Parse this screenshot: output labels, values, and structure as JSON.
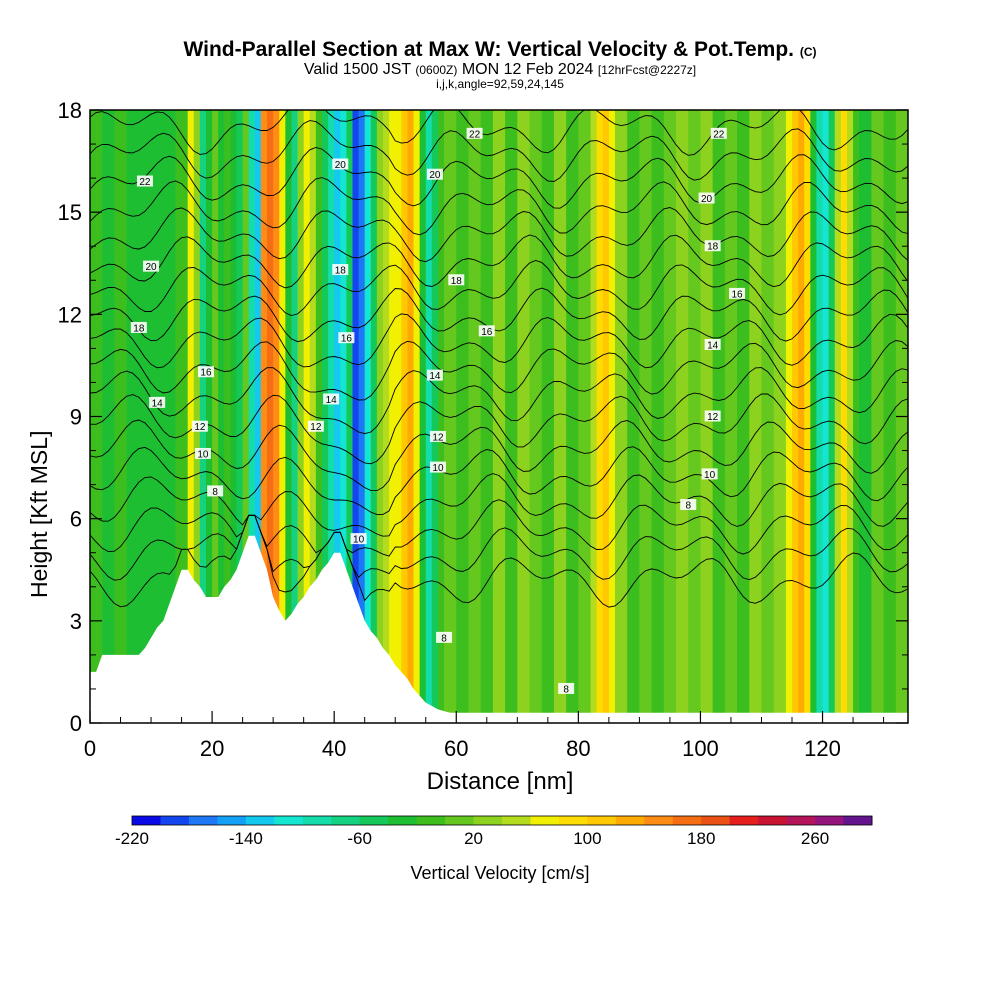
{
  "header": {
    "title": "Wind-Parallel Section at Max W: Vertical Velocity & Pot.Temp.",
    "copyright": "(C)",
    "valid_prefix": "Valid 1500 JST",
    "valid_utc": "(0600Z)",
    "valid_date": "MON 12 Feb 2024",
    "forecast": "[12hrFcst@2227z]",
    "indices": "i,j,k,angle=92,59,24,145"
  },
  "chart_data": {
    "type": "heatmap",
    "xlabel": "Distance [nm]",
    "ylabel": "Height [Kft MSL]",
    "xlim": [
      0,
      134
    ],
    "ylim": [
      0,
      18
    ],
    "x_ticks": [
      0,
      20,
      40,
      60,
      80,
      100,
      120
    ],
    "y_ticks": [
      0,
      3,
      6,
      9,
      12,
      15,
      18
    ],
    "colorbar": {
      "label": "Vertical Velocity [cm/s]",
      "min": -220,
      "max": 300,
      "step": 20,
      "tick_values": [
        -220,
        -140,
        -60,
        20,
        100,
        180,
        260
      ],
      "colors": [
        "#0a0ae6",
        "#1446f0",
        "#1e78f5",
        "#14a0f5",
        "#14c8f0",
        "#14e6d2",
        "#14dcaa",
        "#14d282",
        "#14c85a",
        "#1ebe32",
        "#3cbe1e",
        "#64c81e",
        "#8cd21e",
        "#b4dc1e",
        "#f0f000",
        "#ffdc00",
        "#ffc800",
        "#ffaa00",
        "#ff8c14",
        "#f56e14",
        "#eb5014",
        "#e61e1e",
        "#c81432",
        "#b4145a",
        "#96147d",
        "#64148c"
      ]
    },
    "terrain_kft": [
      [
        0,
        1.5
      ],
      [
        1,
        1.5
      ],
      [
        2,
        2
      ],
      [
        4,
        2
      ],
      [
        6,
        2
      ],
      [
        8,
        2
      ],
      [
        9,
        2.2
      ],
      [
        10,
        2.5
      ],
      [
        11,
        2.8
      ],
      [
        12,
        3
      ],
      [
        13,
        3.5
      ],
      [
        14,
        4
      ],
      [
        15,
        4.5
      ],
      [
        16,
        4.5
      ],
      [
        17,
        4.2
      ],
      [
        18,
        4
      ],
      [
        19,
        3.7
      ],
      [
        20,
        3.7
      ],
      [
        21,
        3.7
      ],
      [
        22,
        4
      ],
      [
        23,
        4.2
      ],
      [
        24,
        4.5
      ],
      [
        25,
        5
      ],
      [
        26,
        5.5
      ],
      [
        27,
        5.5
      ],
      [
        28,
        5
      ],
      [
        29,
        4.5
      ],
      [
        30,
        3.7
      ],
      [
        31,
        3.3
      ],
      [
        32,
        3
      ],
      [
        33,
        3.2
      ],
      [
        34,
        3.5
      ],
      [
        35,
        3.7
      ],
      [
        36,
        4
      ],
      [
        37,
        4.2
      ],
      [
        38,
        4.5
      ],
      [
        39,
        4.7
      ],
      [
        40,
        5
      ],
      [
        41,
        5
      ],
      [
        42,
        4.5
      ],
      [
        43,
        4
      ],
      [
        44,
        3.5
      ],
      [
        45,
        3
      ],
      [
        46,
        2.7
      ],
      [
        47,
        2.5
      ],
      [
        48,
        2.2
      ],
      [
        49,
        2
      ],
      [
        50,
        1.7
      ],
      [
        51,
        1.5
      ],
      [
        52,
        1.3
      ],
      [
        53,
        1
      ],
      [
        54,
        0.8
      ],
      [
        55,
        0.6
      ],
      [
        56,
        0.5
      ],
      [
        57,
        0.4
      ],
      [
        58,
        0.35
      ],
      [
        59,
        0.3
      ],
      [
        60,
        0.3
      ],
      [
        134,
        0.3
      ]
    ],
    "w_columns_cm_s": [
      [
        0,
        -20
      ],
      [
        2,
        -30
      ],
      [
        4,
        -20
      ],
      [
        6,
        -30
      ],
      [
        8,
        -30
      ],
      [
        10,
        -30
      ],
      [
        12,
        -40
      ],
      [
        14,
        -20
      ],
      [
        16,
        60
      ],
      [
        17,
        20
      ],
      [
        18,
        -80
      ],
      [
        19,
        -40
      ],
      [
        20,
        0
      ],
      [
        21,
        -40
      ],
      [
        22,
        -20
      ],
      [
        23,
        -40
      ],
      [
        24,
        -60
      ],
      [
        25,
        0
      ],
      [
        26,
        -100
      ],
      [
        27,
        -140
      ],
      [
        28,
        140
      ],
      [
        29,
        160
      ],
      [
        30,
        140
      ],
      [
        31,
        60
      ],
      [
        32,
        -40
      ],
      [
        33,
        -80
      ],
      [
        34,
        20
      ],
      [
        35,
        60
      ],
      [
        36,
        40
      ],
      [
        37,
        -20
      ],
      [
        38,
        -60
      ],
      [
        39,
        -100
      ],
      [
        40,
        -140
      ],
      [
        41,
        -120
      ],
      [
        42,
        -60
      ],
      [
        43,
        -200
      ],
      [
        44,
        -180
      ],
      [
        45,
        -120
      ],
      [
        46,
        -60
      ],
      [
        47,
        20
      ],
      [
        48,
        40
      ],
      [
        49,
        60
      ],
      [
        50,
        60
      ],
      [
        51,
        100
      ],
      [
        52,
        120
      ],
      [
        53,
        60
      ],
      [
        54,
        -40
      ],
      [
        55,
        -100
      ],
      [
        56,
        -60
      ],
      [
        57,
        -20
      ],
      [
        58,
        0
      ],
      [
        60,
        -20
      ],
      [
        62,
        0
      ],
      [
        64,
        -20
      ],
      [
        66,
        20
      ],
      [
        68,
        -20
      ],
      [
        70,
        20
      ],
      [
        72,
        0
      ],
      [
        74,
        -20
      ],
      [
        76,
        20
      ],
      [
        78,
        -20
      ],
      [
        80,
        0
      ],
      [
        82,
        40
      ],
      [
        83,
        80
      ],
      [
        84,
        100
      ],
      [
        85,
        60
      ],
      [
        86,
        20
      ],
      [
        88,
        -20
      ],
      [
        90,
        0
      ],
      [
        92,
        -20
      ],
      [
        94,
        0
      ],
      [
        96,
        20
      ],
      [
        98,
        0
      ],
      [
        100,
        20
      ],
      [
        102,
        -20
      ],
      [
        104,
        0
      ],
      [
        106,
        -20
      ],
      [
        108,
        20
      ],
      [
        110,
        0
      ],
      [
        112,
        20
      ],
      [
        114,
        60
      ],
      [
        115,
        100
      ],
      [
        116,
        120
      ],
      [
        117,
        80
      ],
      [
        118,
        -40
      ],
      [
        119,
        -100
      ],
      [
        120,
        -120
      ],
      [
        121,
        -60
      ],
      [
        122,
        40
      ],
      [
        123,
        80
      ],
      [
        124,
        40
      ],
      [
        125,
        -20
      ],
      [
        126,
        -40
      ],
      [
        128,
        0
      ],
      [
        130,
        -20
      ],
      [
        132,
        0
      ],
      [
        134,
        -20
      ]
    ],
    "theta_contours_C": [
      6,
      7,
      8,
      9,
      10,
      11,
      12,
      13,
      14,
      15,
      16,
      17,
      18,
      19,
      20,
      21,
      22,
      23
    ],
    "theta_contour_labels": [
      {
        "value": "22",
        "x": 9,
        "y": 15.9
      },
      {
        "value": "20",
        "x": 10,
        "y": 13.4
      },
      {
        "value": "18",
        "x": 8,
        "y": 11.6
      },
      {
        "value": "16",
        "x": 19,
        "y": 10.3
      },
      {
        "value": "14",
        "x": 11,
        "y": 9.4
      },
      {
        "value": "12",
        "x": 18,
        "y": 8.7
      },
      {
        "value": "10",
        "x": 18.5,
        "y": 7.9
      },
      {
        "value": "8",
        "x": 20.5,
        "y": 6.8
      },
      {
        "value": "20",
        "x": 41,
        "y": 16.4
      },
      {
        "value": "18",
        "x": 41,
        "y": 13.3
      },
      {
        "value": "16",
        "x": 42,
        "y": 11.3
      },
      {
        "value": "14",
        "x": 39.5,
        "y": 9.5
      },
      {
        "value": "12",
        "x": 37,
        "y": 8.7
      },
      {
        "value": "10",
        "x": 44,
        "y": 5.4
      },
      {
        "value": "22",
        "x": 63,
        "y": 17.3
      },
      {
        "value": "20",
        "x": 56.5,
        "y": 16.1
      },
      {
        "value": "18",
        "x": 60,
        "y": 13
      },
      {
        "value": "16",
        "x": 65,
        "y": 11.5
      },
      {
        "value": "14",
        "x": 56.5,
        "y": 10.2
      },
      {
        "value": "12",
        "x": 57,
        "y": 8.4
      },
      {
        "value": "10",
        "x": 57,
        "y": 7.5
      },
      {
        "value": "8",
        "x": 58,
        "y": 2.5
      },
      {
        "value": "22",
        "x": 103,
        "y": 17.3
      },
      {
        "value": "20",
        "x": 101,
        "y": 15.4
      },
      {
        "value": "18",
        "x": 102,
        "y": 14
      },
      {
        "value": "16",
        "x": 106,
        "y": 12.6
      },
      {
        "value": "14",
        "x": 102,
        "y": 11.1
      },
      {
        "value": "12",
        "x": 102,
        "y": 9
      },
      {
        "value": "10",
        "x": 101.5,
        "y": 7.3
      },
      {
        "value": "8",
        "x": 98,
        "y": 6.4
      },
      {
        "value": "8",
        "x": 78,
        "y": 1
      }
    ]
  }
}
